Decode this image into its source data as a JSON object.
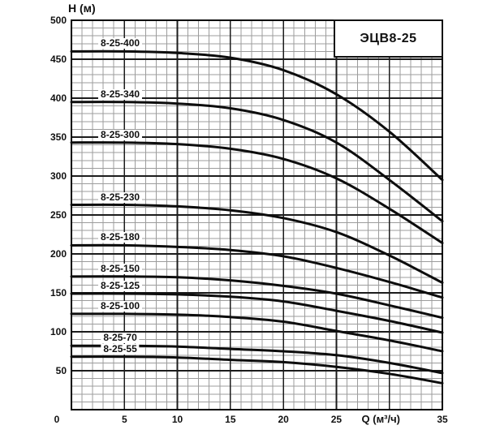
{
  "title_box": {
    "label": "ЭЦВ8-25"
  },
  "colors": {
    "background": "#ffffff",
    "grid_minor": "#9c9c9c",
    "grid_major": "#1c1c1c",
    "plot_border": "#000000",
    "curve": "#0d0d0d",
    "text": "#111111"
  },
  "chart_data": {
    "type": "line",
    "title": "ЭЦВ8-25",
    "xlabel": "Q (м³/ч)",
    "ylabel": "H (м)",
    "xlim": [
      0,
      35
    ],
    "ylim": [
      0,
      500
    ],
    "grid": {
      "x_minor_step": 1,
      "x_major_step": 5,
      "y_minor_step": 10,
      "y_major_step": 50,
      "grid_on": true
    },
    "x_ticks": [
      {
        "value": 0,
        "label": "0"
      },
      {
        "value": 5,
        "label": "5"
      },
      {
        "value": 10,
        "label": "10"
      },
      {
        "value": 15,
        "label": "15"
      },
      {
        "value": 20,
        "label": "20"
      },
      {
        "value": 25,
        "label": "25"
      },
      {
        "value": 29.2,
        "label": "Q (м³/ч)",
        "axis_title": true
      },
      {
        "value": 35,
        "label": "35"
      }
    ],
    "y_ticks": [
      {
        "value": 500,
        "label": "500"
      },
      {
        "value": 450,
        "label": "450"
      },
      {
        "value": 400,
        "label": "400"
      },
      {
        "value": 350,
        "label": "350"
      },
      {
        "value": 300,
        "label": "300"
      },
      {
        "value": 250,
        "label": "250"
      },
      {
        "value": 200,
        "label": "200"
      },
      {
        "value": 150,
        "label": "150"
      },
      {
        "value": 100,
        "label": "100"
      },
      {
        "value": 50,
        "label": "50"
      }
    ],
    "series_label_q": 4.6,
    "series": [
      {
        "name": "8-25-400",
        "points": [
          [
            0,
            460
          ],
          [
            5,
            460
          ],
          [
            10,
            458
          ],
          [
            15,
            452
          ],
          [
            20,
            436
          ],
          [
            25,
            405
          ],
          [
            30,
            357
          ],
          [
            35,
            295
          ]
        ]
      },
      {
        "name": "8-25-340",
        "points": [
          [
            0,
            395
          ],
          [
            5,
            395
          ],
          [
            10,
            393
          ],
          [
            15,
            387
          ],
          [
            20,
            372
          ],
          [
            25,
            343
          ],
          [
            30,
            295
          ],
          [
            35,
            242
          ]
        ]
      },
      {
        "name": "8-25-300",
        "points": [
          [
            0,
            343
          ],
          [
            5,
            343
          ],
          [
            10,
            341
          ],
          [
            15,
            335
          ],
          [
            20,
            322
          ],
          [
            25,
            297
          ],
          [
            30,
            258
          ],
          [
            35,
            214
          ]
        ]
      },
      {
        "name": "8-25-230",
        "points": [
          [
            0,
            263
          ],
          [
            5,
            263
          ],
          [
            10,
            261
          ],
          [
            15,
            256
          ],
          [
            20,
            246
          ],
          [
            25,
            228
          ],
          [
            30,
            198
          ],
          [
            35,
            163
          ]
        ]
      },
      {
        "name": "8-25-180",
        "points": [
          [
            0,
            211
          ],
          [
            5,
            211
          ],
          [
            10,
            209
          ],
          [
            15,
            205
          ],
          [
            20,
            197
          ],
          [
            25,
            182
          ],
          [
            30,
            164
          ],
          [
            35,
            144
          ]
        ]
      },
      {
        "name": "8-25-150",
        "points": [
          [
            0,
            171
          ],
          [
            5,
            171
          ],
          [
            10,
            170
          ],
          [
            15,
            166
          ],
          [
            20,
            159
          ],
          [
            25,
            149
          ],
          [
            30,
            134
          ],
          [
            35,
            118
          ]
        ]
      },
      {
        "name": "8-25-125",
        "points": [
          [
            0,
            149
          ],
          [
            5,
            149
          ],
          [
            10,
            148
          ],
          [
            15,
            145
          ],
          [
            20,
            139
          ],
          [
            25,
            127
          ],
          [
            30,
            114
          ],
          [
            35,
            99
          ]
        ]
      },
      {
        "name": "8-25-100",
        "points": [
          [
            0,
            123
          ],
          [
            5,
            123
          ],
          [
            10,
            122
          ],
          [
            15,
            119
          ],
          [
            20,
            113
          ],
          [
            25,
            101
          ],
          [
            30,
            89
          ],
          [
            35,
            75
          ]
        ]
      },
      {
        "name": "8-25-70",
        "points": [
          [
            0,
            82
          ],
          [
            5,
            82
          ],
          [
            10,
            81
          ],
          [
            15,
            78
          ],
          [
            20,
            75
          ],
          [
            25,
            70
          ],
          [
            30,
            60
          ],
          [
            35,
            47
          ]
        ]
      },
      {
        "name": "8-25-55",
        "points": [
          [
            0,
            68
          ],
          [
            5,
            68
          ],
          [
            10,
            67
          ],
          [
            15,
            64
          ],
          [
            20,
            61
          ],
          [
            25,
            55
          ],
          [
            30,
            46
          ],
          [
            35,
            34
          ]
        ]
      }
    ]
  }
}
